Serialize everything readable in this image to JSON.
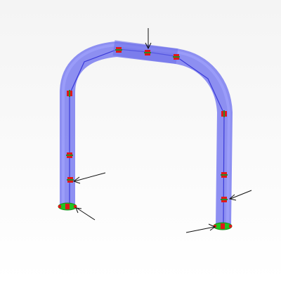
{
  "viewport": {
    "background_top": "#f4f4f4",
    "background_bottom": "#ffffff"
  },
  "tube": {
    "fill_color": "#7a7cf0",
    "highlight_color": "#a6a8ff",
    "centerline_color": "#3a3ad8"
  },
  "node": {
    "fill_color": "#e01818",
    "accent_color": "#2a8a2a"
  },
  "end_cap": {
    "fill_color": "#22c222",
    "marker_color": "#e01818"
  },
  "arrow": {
    "stroke_color": "#111111"
  }
}
